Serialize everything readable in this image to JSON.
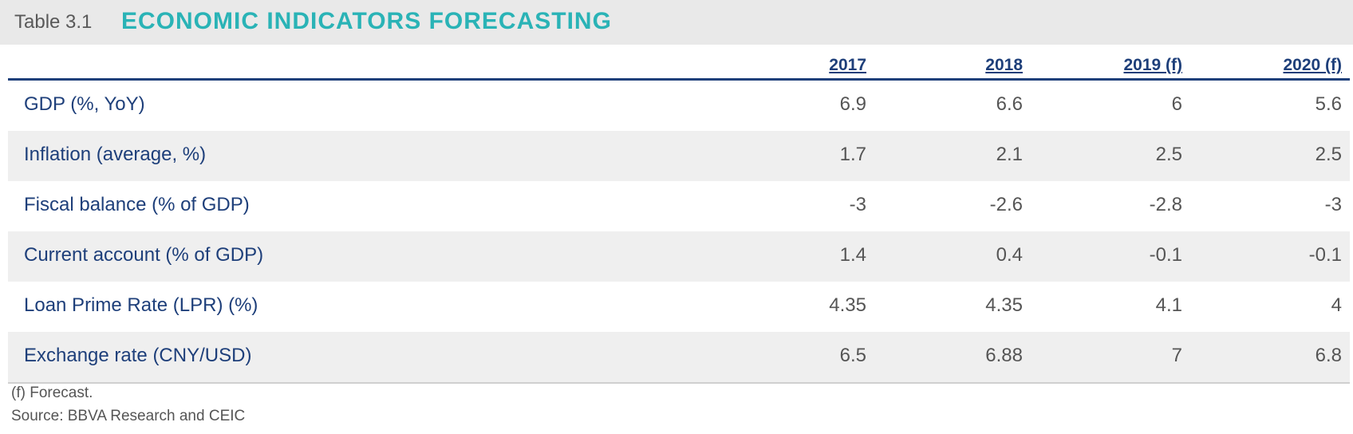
{
  "title": {
    "prefix": "Table 3.1",
    "main": "ECONOMIC INDICATORS FORECASTING"
  },
  "table": {
    "columns": [
      "2017",
      "2018",
      "2019 (f)",
      "2020 (f)"
    ],
    "rows": [
      {
        "label": "GDP (%, YoY)",
        "values": [
          "6.9",
          "6.6",
          "6",
          "5.6"
        ]
      },
      {
        "label": "Inflation (average, %)",
        "values": [
          "1.7",
          "2.1",
          "2.5",
          "2.5"
        ]
      },
      {
        "label": "Fiscal balance (% of GDP)",
        "values": [
          "-3",
          "-2.6",
          "-2.8",
          "-3"
        ]
      },
      {
        "label": "Current account (% of GDP)",
        "values": [
          "1.4",
          "0.4",
          "-0.1",
          "-0.1"
        ]
      },
      {
        "label": "Loan Prime Rate (LPR) (%)",
        "values": [
          "4.35",
          "4.35",
          "4.1",
          "4"
        ]
      },
      {
        "label": "Exchange rate (CNY/USD)",
        "values": [
          "6.5",
          "6.88",
          "7",
          "6.8"
        ]
      }
    ]
  },
  "notes": {
    "forecast": "(f) Forecast.",
    "source": "Source: BBVA Research and CEIC"
  }
}
